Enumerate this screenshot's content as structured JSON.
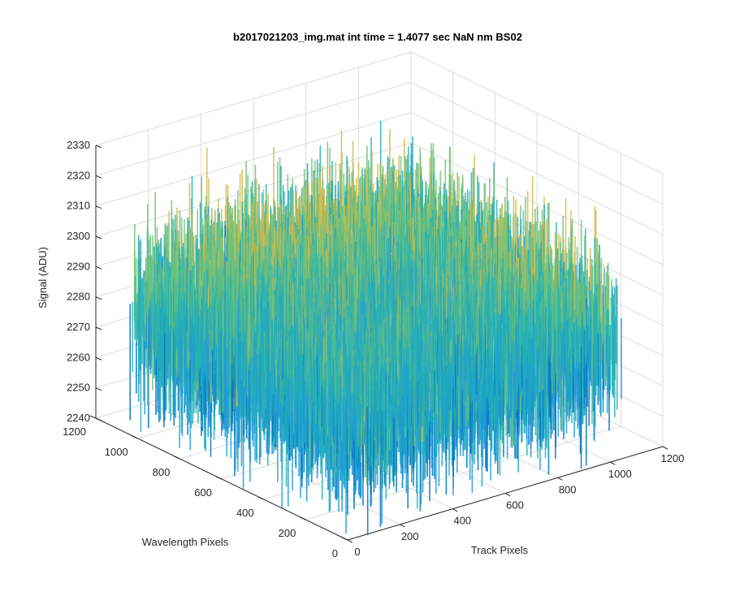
{
  "chart_data": {
    "type": "surface",
    "title": "b2017021203_img.mat int time = 1.4077 sec  NaN nm BS02",
    "xlabel": "Track Pixels",
    "ylabel": "Wavelength Pixels",
    "zlabel": "Signal (ADU)",
    "xlim": [
      0,
      1200
    ],
    "ylim": [
      0,
      1200
    ],
    "zlim": [
      2240,
      2330
    ],
    "xticks": [
      "0",
      "200",
      "400",
      "600",
      "800",
      "1000",
      "1200"
    ],
    "yticks": [
      "0",
      "200",
      "400",
      "600",
      "800",
      "1000",
      "1200"
    ],
    "zticks": [
      "2240",
      "2250",
      "2260",
      "2270",
      "2280",
      "2290",
      "2300",
      "2310",
      "2320",
      "2330"
    ],
    "data_extent": {
      "x": [
        0,
        1024
      ],
      "y": [
        0,
        1024
      ]
    },
    "signal_mean": 2280,
    "signal_range": [
      2255,
      2305
    ],
    "grid": true,
    "colormap": [
      "#0072bd",
      "#1f9bd6",
      "#21b1b6",
      "#6ec27a",
      "#d0bb4d"
    ]
  }
}
